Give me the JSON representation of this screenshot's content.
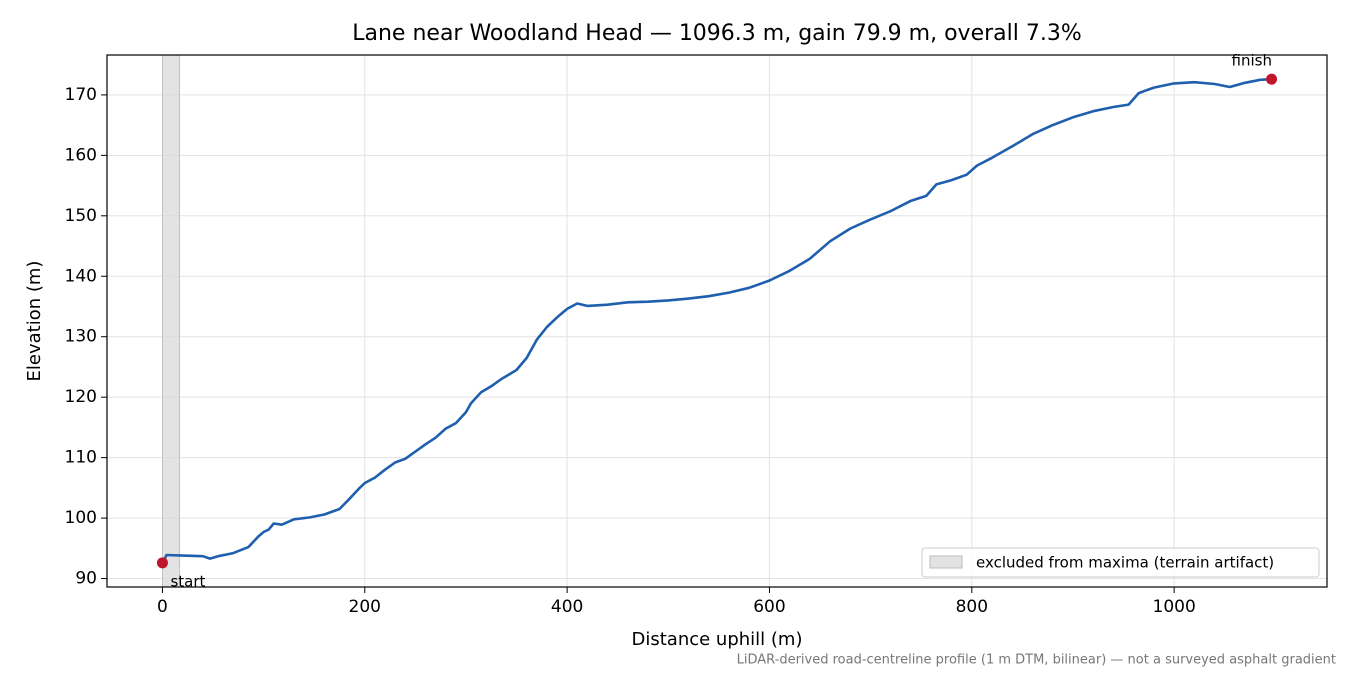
{
  "chart_data": {
    "type": "line",
    "title": "Lane near Woodland Head — 1096.3 m, gain 79.9 m, overall 7.3%",
    "x_label": "Distance uphill (m)",
    "y_label": "Elevation (m)",
    "footnote": "LiDAR-derived road-centreline profile (1 m DTM, bilinear) — not a surveyed asphalt gradient",
    "xlim": [
      -54.8,
      1151.1
    ],
    "ylim": [
      88.6,
      176.6
    ],
    "xticks": [
      0,
      200,
      400,
      600,
      800,
      1000
    ],
    "yticks": [
      90,
      100,
      110,
      120,
      130,
      140,
      150,
      160,
      170
    ],
    "grid": true,
    "legend": "lower right",
    "span": {
      "x": [
        0,
        17
      ],
      "label": "excluded from maxima (terrain artifact)",
      "color": "#d9d9d9"
    },
    "series": [
      {
        "color": "#1f5fae",
        "x": [
          2,
          4,
          20,
          40,
          47,
          55,
          70,
          85,
          95,
          100,
          105,
          110,
          118,
          130,
          145,
          160,
          175,
          185,
          195,
          200,
          210,
          220,
          230,
          240,
          250,
          260,
          270,
          280,
          290,
          300,
          305,
          315,
          325,
          335,
          350,
          360,
          370,
          380,
          390,
          400,
          410,
          420,
          440,
          460,
          480,
          500,
          520,
          540,
          560,
          580,
          600,
          620,
          640,
          660,
          680,
          700,
          720,
          740,
          755,
          765,
          780,
          795,
          805,
          820,
          840,
          860,
          880,
          900,
          920,
          940,
          955,
          965,
          980,
          1000,
          1020,
          1040,
          1055,
          1070,
          1085,
          1096.3
        ],
        "values": [
          93.2,
          93.9,
          93.8,
          93.7,
          93.3,
          93.7,
          94.2,
          95.2,
          97.0,
          97.7,
          98.1,
          99.1,
          98.9,
          99.8,
          100.1,
          100.6,
          101.5,
          103.2,
          105.0,
          105.8,
          106.7,
          108.0,
          109.2,
          109.8,
          111.0,
          112.2,
          113.3,
          114.8,
          115.7,
          117.5,
          119.0,
          120.8,
          121.8,
          123.0,
          124.5,
          126.5,
          129.5,
          131.6,
          133.2,
          134.6,
          135.5,
          135.1,
          135.3,
          135.7,
          135.8,
          136.0,
          136.3,
          136.7,
          137.3,
          138.1,
          139.3,
          140.9,
          142.9,
          145.8,
          147.9,
          149.4,
          150.8,
          152.5,
          153.3,
          155.2,
          155.9,
          156.8,
          158.3,
          159.6,
          161.5,
          163.5,
          165.0,
          166.3,
          167.3,
          168.0,
          168.4,
          170.3,
          171.2,
          171.9,
          172.1,
          171.8,
          171.3,
          172.0,
          172.5,
          172.6
        ]
      }
    ],
    "markers": [
      {
        "label": "start",
        "x": 0,
        "y": 92.6,
        "color": "#c0162b"
      },
      {
        "label": "finish",
        "x": 1096.3,
        "y": 172.6,
        "color": "#c0162b"
      }
    ]
  }
}
